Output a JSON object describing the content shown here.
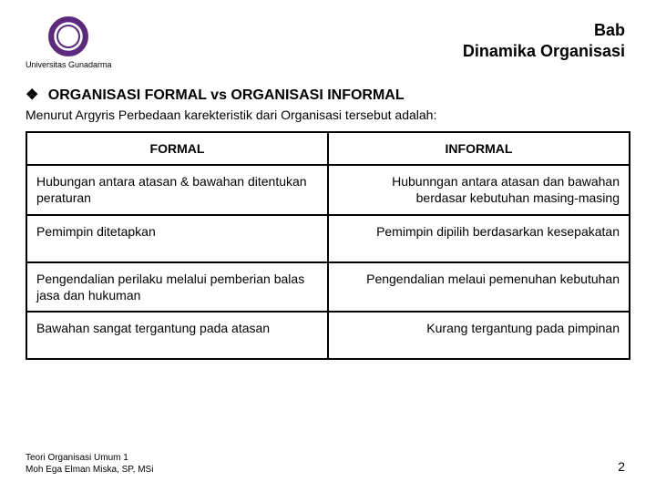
{
  "header": {
    "university": "Universitas Gunadarma",
    "title_line1": "Bab",
    "title_line2": "Dinamika Organisasi"
  },
  "section": {
    "bullet": "❖",
    "title": "ORGANISASI FORMAL vs ORGANISASI INFORMAL",
    "subtitle": "Menurut Argyris Perbedaan karekteristik dari Organisasi tersebut adalah:"
  },
  "table": {
    "columns": [
      "FORMAL",
      "INFORMAL"
    ],
    "rows": [
      [
        "Hubungan antara atasan & bawahan ditentukan peraturan",
        "Hubunngan antara atasan dan bawahan berdasar kebutuhan masing-masing"
      ],
      [
        "Pemimpin ditetapkan",
        "Pemimpin dipilih berdasarkan kesepakatan"
      ],
      [
        "Pengendalian perilaku melalui pemberian balas jasa dan hukuman",
        "Pengendalian melaui pemenuhan kebutuhan"
      ],
      [
        "Bawahan sangat tergantung pada atasan",
        "Kurang tergantung pada pimpinan"
      ]
    ]
  },
  "footer": {
    "line1": "Teori Organisasi Umum 1",
    "line2": "Moh Ega Elman Miska, SP, MSi"
  },
  "page_number": "2"
}
